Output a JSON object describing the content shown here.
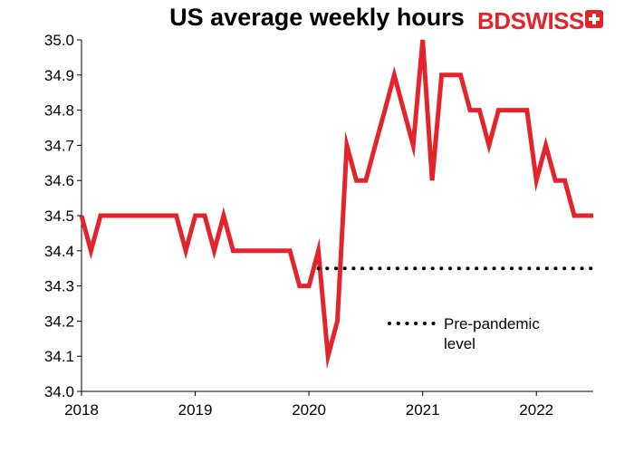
{
  "chart_data": {
    "type": "line",
    "title": "US average weekly hours",
    "xlabel": "",
    "ylabel": "",
    "ylim": [
      34.0,
      35.0
    ],
    "yticks": [
      "35.0",
      "34.9",
      "34.8",
      "34.7",
      "34.6",
      "34.5",
      "34.4",
      "34.3",
      "34.2",
      "34.1",
      "34.0"
    ],
    "xlim": [
      2018.0,
      2022.5
    ],
    "xticks": [
      "2018",
      "2019",
      "2020",
      "2021",
      "2022"
    ],
    "grid": false,
    "legend": {
      "placement": "lower-center",
      "entries": [
        "Pre-pandemic",
        "level"
      ]
    },
    "series": [
      {
        "color": "#e3242b",
        "x": [
          2018.0,
          2018.083,
          2018.167,
          2018.25,
          2018.333,
          2018.417,
          2018.5,
          2018.583,
          2018.667,
          2018.75,
          2018.833,
          2018.917,
          2019.0,
          2019.083,
          2019.167,
          2019.25,
          2019.333,
          2019.417,
          2019.5,
          2019.583,
          2019.667,
          2019.75,
          2019.833,
          2019.917,
          2020.0,
          2020.083,
          2020.167,
          2020.25,
          2020.333,
          2020.417,
          2020.5,
          2020.583,
          2020.667,
          2020.75,
          2020.833,
          2020.917,
          2021.0,
          2021.083,
          2021.167,
          2021.25,
          2021.333,
          2021.417,
          2021.5,
          2021.583,
          2021.667,
          2021.75,
          2021.833,
          2021.917,
          2022.0,
          2022.083,
          2022.167,
          2022.25,
          2022.333,
          2022.417,
          2022.5
        ],
        "values": [
          34.5,
          34.4,
          34.5,
          34.5,
          34.5,
          34.5,
          34.5,
          34.5,
          34.5,
          34.5,
          34.5,
          34.4,
          34.5,
          34.5,
          34.4,
          34.5,
          34.4,
          34.4,
          34.4,
          34.4,
          34.4,
          34.4,
          34.4,
          34.3,
          34.3,
          34.4,
          34.1,
          34.2,
          34.7,
          34.6,
          34.6,
          34.7,
          34.8,
          34.9,
          34.8,
          34.7,
          35.0,
          34.6,
          34.9,
          34.9,
          34.9,
          34.8,
          34.8,
          34.7,
          34.8,
          34.8,
          34.8,
          34.8,
          34.6,
          34.7,
          34.6,
          34.6,
          34.5,
          34.5,
          34.5
        ]
      },
      {
        "color": "#000000",
        "style": "dotted",
        "x": [
          2020.083,
          2022.5
        ],
        "values": [
          34.35,
          34.35
        ]
      }
    ]
  },
  "branding": {
    "logo_text_bd": "BD",
    "logo_text_swiss": "SWISS",
    "logo_icon": "swiss-cross-icon"
  }
}
